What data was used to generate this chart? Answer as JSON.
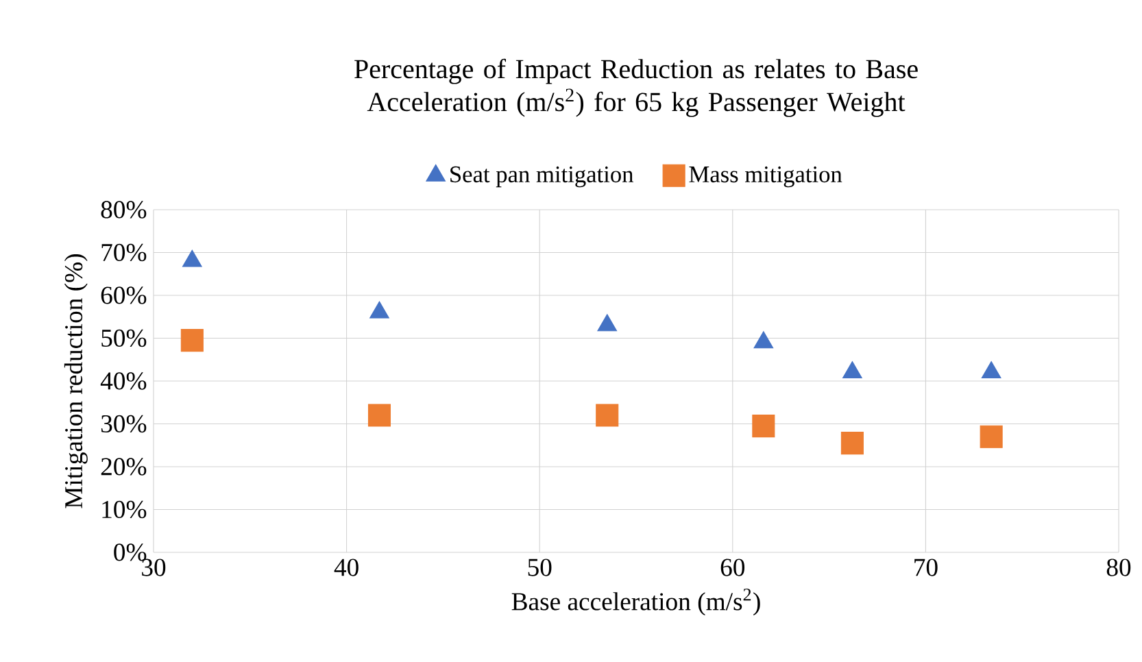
{
  "chart_data": {
    "type": "scatter",
    "title": "Percentage of Impact Reduction as relates to Base Acceleration (m/s$^{2}$) for 65 kg Passenger Weight",
    "xlabel": "Base acceleration (m/s$^{2}$)",
    "ylabel": "Mitigation reduction (%)",
    "xlim": [
      30,
      80
    ],
    "xticks": [
      30,
      40,
      50,
      60,
      70,
      80
    ],
    "ylim": [
      0,
      80
    ],
    "yticks": [
      {
        "value": 0,
        "label": "0%"
      },
      {
        "value": 10,
        "label": "10%"
      },
      {
        "value": 20,
        "label": "20%"
      },
      {
        "value": 30,
        "label": "30%"
      },
      {
        "value": 40,
        "label": "40%"
      },
      {
        "value": 50,
        "label": "50%"
      },
      {
        "value": 60,
        "label": "60%"
      },
      {
        "value": 70,
        "label": "70%"
      },
      {
        "value": 80,
        "label": "80%"
      }
    ],
    "grid": true,
    "legend": "top",
    "series": [
      {
        "name": "Seat pan mitigation",
        "color": "#4472c4",
        "marker": "triangle",
        "x": [
          32,
          41.7,
          53.5,
          61.6,
          66.2,
          73.4
        ],
        "values": [
          68,
          56,
          53,
          49,
          42,
          42
        ]
      },
      {
        "name": "Mass mitigation",
        "color": "#ed7d31",
        "marker": "square",
        "x": [
          32,
          41.7,
          53.5,
          61.6,
          66.2,
          73.4
        ],
        "values": [
          49.5,
          32,
          32,
          29.5,
          25.5,
          27
        ]
      }
    ]
  }
}
